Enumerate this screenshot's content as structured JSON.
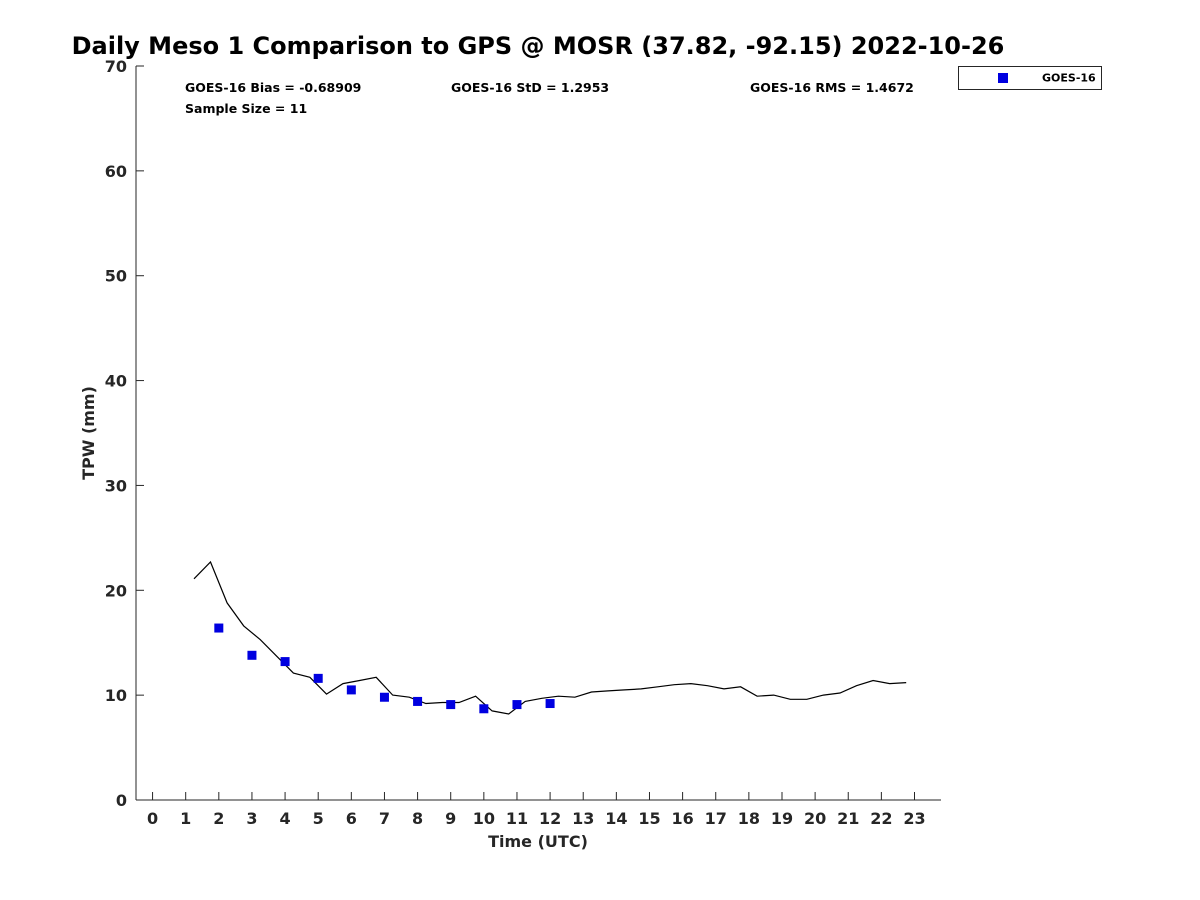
{
  "chart_data": {
    "type": "scatter",
    "title": "Daily Meso 1 Comparison to GPS @ MOSR (37.82, -92.15) 2022-10-26",
    "xlabel": "Time (UTC)",
    "ylabel": "TPW (mm)",
    "xlim": [
      -0.5,
      23.8
    ],
    "ylim": [
      0,
      70
    ],
    "x_ticks": [
      "0",
      "1",
      "2",
      "3",
      "4",
      "5",
      "6",
      "7",
      "8",
      "9",
      "10",
      "11",
      "12",
      "13",
      "14",
      "15",
      "16",
      "17",
      "18",
      "19",
      "20",
      "21",
      "22",
      "23"
    ],
    "y_ticks": [
      "0",
      "10",
      "20",
      "30",
      "40",
      "50",
      "60",
      "70"
    ],
    "grid": false,
    "legend": {
      "placement": "top-right-outside",
      "entries": [
        "GOES-16"
      ]
    },
    "stats": {
      "bias": "GOES-16 Bias = -0.68909",
      "std": "GOES-16 StD = 1.2953",
      "rms": "GOES-16 RMS = 1.4672",
      "sample": "Sample Size = 11"
    },
    "series": [
      {
        "name": "GOES-16",
        "kind": "scatter",
        "color": "#0000e0",
        "marker": "square",
        "x": [
          2.0,
          3.0,
          4.0,
          5.0,
          6.0,
          7.0,
          8.0,
          9.0,
          10.0,
          11.0,
          12.0
        ],
        "y": [
          16.4,
          13.8,
          13.2,
          11.6,
          10.5,
          9.8,
          9.4,
          9.1,
          8.7,
          9.1,
          9.2
        ]
      },
      {
        "kind": "line",
        "color": "#000000",
        "x": [
          1.25,
          1.75,
          2.25,
          2.75,
          3.25,
          3.75,
          4.25,
          4.75,
          5.25,
          5.75,
          6.25,
          6.75,
          7.25,
          7.75,
          8.25,
          8.75,
          9.25,
          9.75,
          10.25,
          10.75,
          11.25,
          11.75,
          12.25,
          12.75,
          13.25,
          13.75,
          14.25,
          14.75,
          15.25,
          15.75,
          16.25,
          16.75,
          17.25,
          17.75,
          18.25,
          18.75,
          19.25,
          19.75,
          20.25,
          20.75,
          21.25,
          21.75,
          22.25,
          22.75
        ],
        "y": [
          21.1,
          22.7,
          18.8,
          16.6,
          15.3,
          13.7,
          12.1,
          11.7,
          10.1,
          11.1,
          11.4,
          11.7,
          10.0,
          9.8,
          9.2,
          9.3,
          9.3,
          9.9,
          8.5,
          8.2,
          9.4,
          9.7,
          9.9,
          9.8,
          10.3,
          10.4,
          10.5,
          10.6,
          10.8,
          11.0,
          11.1,
          10.9,
          10.6,
          10.8,
          9.9,
          10.0,
          9.6,
          9.6,
          10.0,
          10.2,
          10.9,
          11.4,
          11.1,
          11.2
        ]
      }
    ]
  }
}
